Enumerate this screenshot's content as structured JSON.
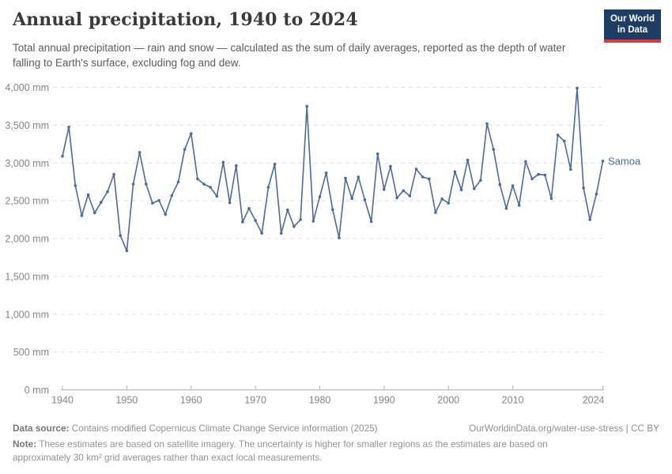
{
  "header": {
    "title": "Annual precipitation, 1940 to 2024",
    "subtitle": "Total annual precipitation — rain and snow — calculated as the sum of daily averages, reported as the depth of water falling to Earth's surface, excluding fog and dew.",
    "logo": {
      "line1": "Our World",
      "line2": "in Data",
      "bg_color": "#1d3d63",
      "stripe_color": "#d93a3a"
    }
  },
  "chart_data": {
    "type": "line",
    "title": "Annual precipitation, 1940 to 2024",
    "xlabel": "",
    "ylabel": "",
    "unit": "mm",
    "xlim": [
      1940,
      2024
    ],
    "ylim": [
      0,
      4000
    ],
    "x_start": 1940,
    "x_step": 1,
    "x_ticks": [
      1940,
      1950,
      1960,
      1970,
      1980,
      1990,
      2000,
      2010,
      2024
    ],
    "y_ticks": [
      0,
      500,
      1000,
      1500,
      2000,
      2500,
      3000,
      3500,
      4000
    ],
    "grid": "horizontal-dashed",
    "legend_position": "end-of-line-label",
    "line_color": "#4C6A9C",
    "axis_color": "#b3b3b3",
    "grid_color": "#e0e0e0",
    "tick_label_color": "#858585",
    "series": [
      {
        "name": "Samoa",
        "color": "#4C6A9C",
        "values": [
          3090,
          3475,
          2700,
          2305,
          2580,
          2340,
          2480,
          2620,
          2850,
          2040,
          1840,
          2720,
          3140,
          2720,
          2470,
          2505,
          2320,
          2570,
          2750,
          3180,
          3390,
          2790,
          2720,
          2680,
          2560,
          3010,
          2475,
          2965,
          2220,
          2400,
          2240,
          2070,
          2680,
          2985,
          2070,
          2380,
          2160,
          2250,
          3750,
          2230,
          2555,
          2870,
          2385,
          2010,
          2800,
          2530,
          2815,
          2515,
          2225,
          3120,
          2650,
          2955,
          2540,
          2635,
          2565,
          2920,
          2815,
          2790,
          2345,
          2525,
          2470,
          2885,
          2645,
          3040,
          2660,
          2770,
          3520,
          3180,
          2715,
          2400,
          2700,
          2440,
          3020,
          2790,
          2850,
          2840,
          2530,
          3370,
          3290,
          2915,
          3990,
          2670,
          2250,
          2590,
          3025
        ]
      }
    ]
  },
  "footer": {
    "datasource_label": "Data source:",
    "datasource_text": " Contains modified Copernicus Climate Change Service information (2025)",
    "link_text": "OurWorldinData.org/water-use-stress | CC BY",
    "note_label": "Note:",
    "note_text": " These estimates are based on satellite imagery. The uncertainty is higher for smaller regions as the estimates are based on approximately 30 km² grid averages rather than exact local measurements."
  }
}
